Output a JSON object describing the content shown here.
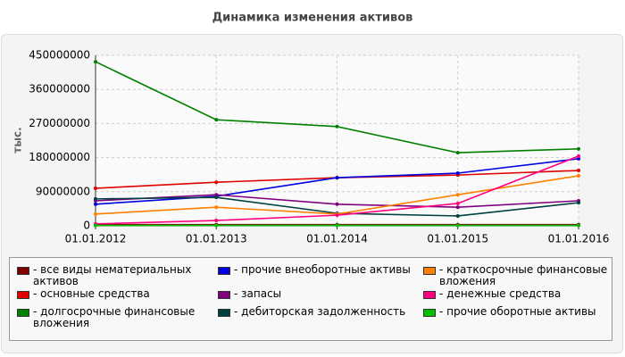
{
  "chart_data": {
    "type": "line",
    "title": "Динамика изменения активов",
    "y_label": "тыс.",
    "categories": [
      "01.01.2012",
      "01.01.2013",
      "01.01.2014",
      "01.01.2015",
      "01.01.2016"
    ],
    "ylim": [
      0,
      450000000
    ],
    "yticks": [
      0,
      90000000,
      180000000,
      270000000,
      360000000,
      450000000
    ],
    "grid": true,
    "series": [
      {
        "name": "- все виды нематериальных активов",
        "color": "#800000",
        "values": [
          3000000,
          3000000,
          3000000,
          3000000,
          3000000
        ]
      },
      {
        "name": "- основные средства",
        "color": "#e00000",
        "values": [
          99000000,
          115000000,
          127000000,
          134000000,
          146000000
        ]
      },
      {
        "name": "- долгосрочные финансовые вложения",
        "color": "#008000",
        "values": [
          433000000,
          280000000,
          262000000,
          193000000,
          203000000
        ]
      },
      {
        "name": "- прочие внеоборотные активы",
        "color": "#0000e0",
        "values": [
          57000000,
          78000000,
          127000000,
          139000000,
          177000000
        ]
      },
      {
        "name": "- запасы",
        "color": "#800080",
        "values": [
          66000000,
          82000000,
          57000000,
          49000000,
          66000000
        ]
      },
      {
        "name": "- дебиторская задолженность",
        "color": "#004040",
        "values": [
          71000000,
          75000000,
          33000000,
          26000000,
          61000000
        ]
      },
      {
        "name": "- краткосрочные финансовые вложения",
        "color": "#ff8000",
        "values": [
          31000000,
          49000000,
          31000000,
          82000000,
          132000000
        ]
      },
      {
        "name": "- денежные средства",
        "color": "#ff0080",
        "values": [
          5000000,
          14000000,
          28000000,
          59000000,
          184000000
        ]
      },
      {
        "name": "- прочие оборотные активы",
        "color": "#00c000",
        "values": [
          1000000,
          1000000,
          1000000,
          1000000,
          1000000
        ]
      }
    ]
  }
}
